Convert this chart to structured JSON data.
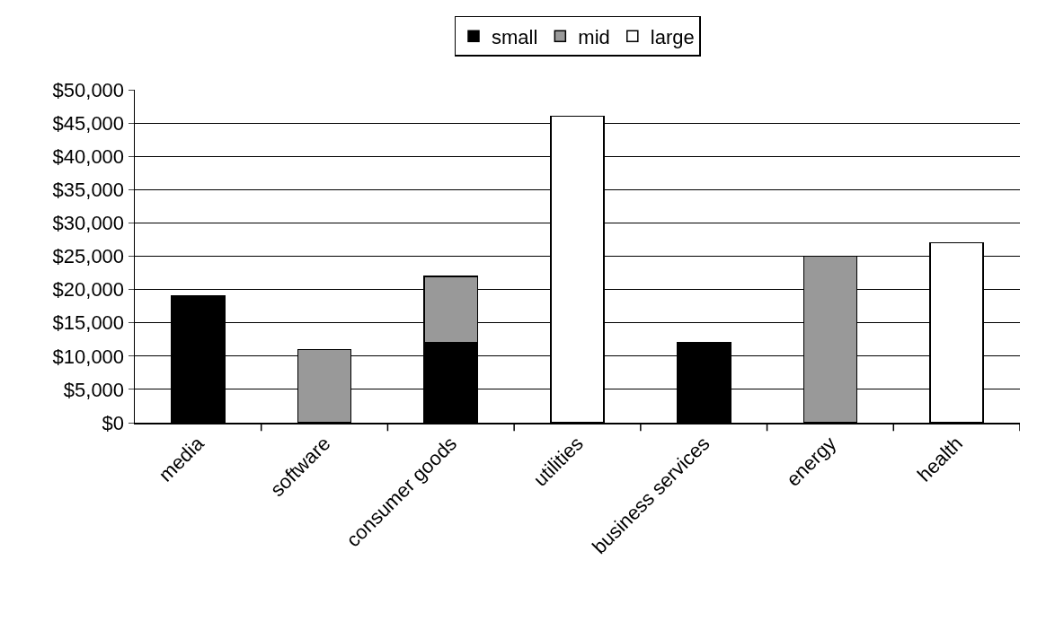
{
  "chart_data": {
    "type": "bar",
    "stacked": true,
    "categories": [
      "media",
      "software",
      "consumer goods",
      "utilities",
      "business services",
      "energy",
      "health"
    ],
    "series": [
      {
        "name": "small",
        "color": "#000000",
        "values": [
          19000,
          null,
          12000,
          null,
          12000,
          null,
          null
        ]
      },
      {
        "name": "mid",
        "color": "#999999",
        "values": [
          null,
          11000,
          10000,
          null,
          null,
          25000,
          null
        ]
      },
      {
        "name": "large",
        "color": "#ffffff",
        "values": [
          null,
          null,
          null,
          46000,
          null,
          null,
          27000
        ]
      }
    ],
    "ylim": [
      0,
      50000
    ],
    "yticks": [
      {
        "value": 0,
        "label": "$0"
      },
      {
        "value": 5000,
        "label": "$5,000"
      },
      {
        "value": 10000,
        "label": "$10,000"
      },
      {
        "value": 15000,
        "label": "$15,000"
      },
      {
        "value": 20000,
        "label": "$20,000"
      },
      {
        "value": 25000,
        "label": "$25,000"
      },
      {
        "value": 30000,
        "label": "$30,000"
      },
      {
        "value": 35000,
        "label": "$35,000"
      },
      {
        "value": 40000,
        "label": "$40,000"
      },
      {
        "value": 45000,
        "label": "$45,000"
      },
      {
        "value": 50000,
        "label": "$50,000"
      }
    ],
    "grid": "y",
    "legend": "top"
  }
}
